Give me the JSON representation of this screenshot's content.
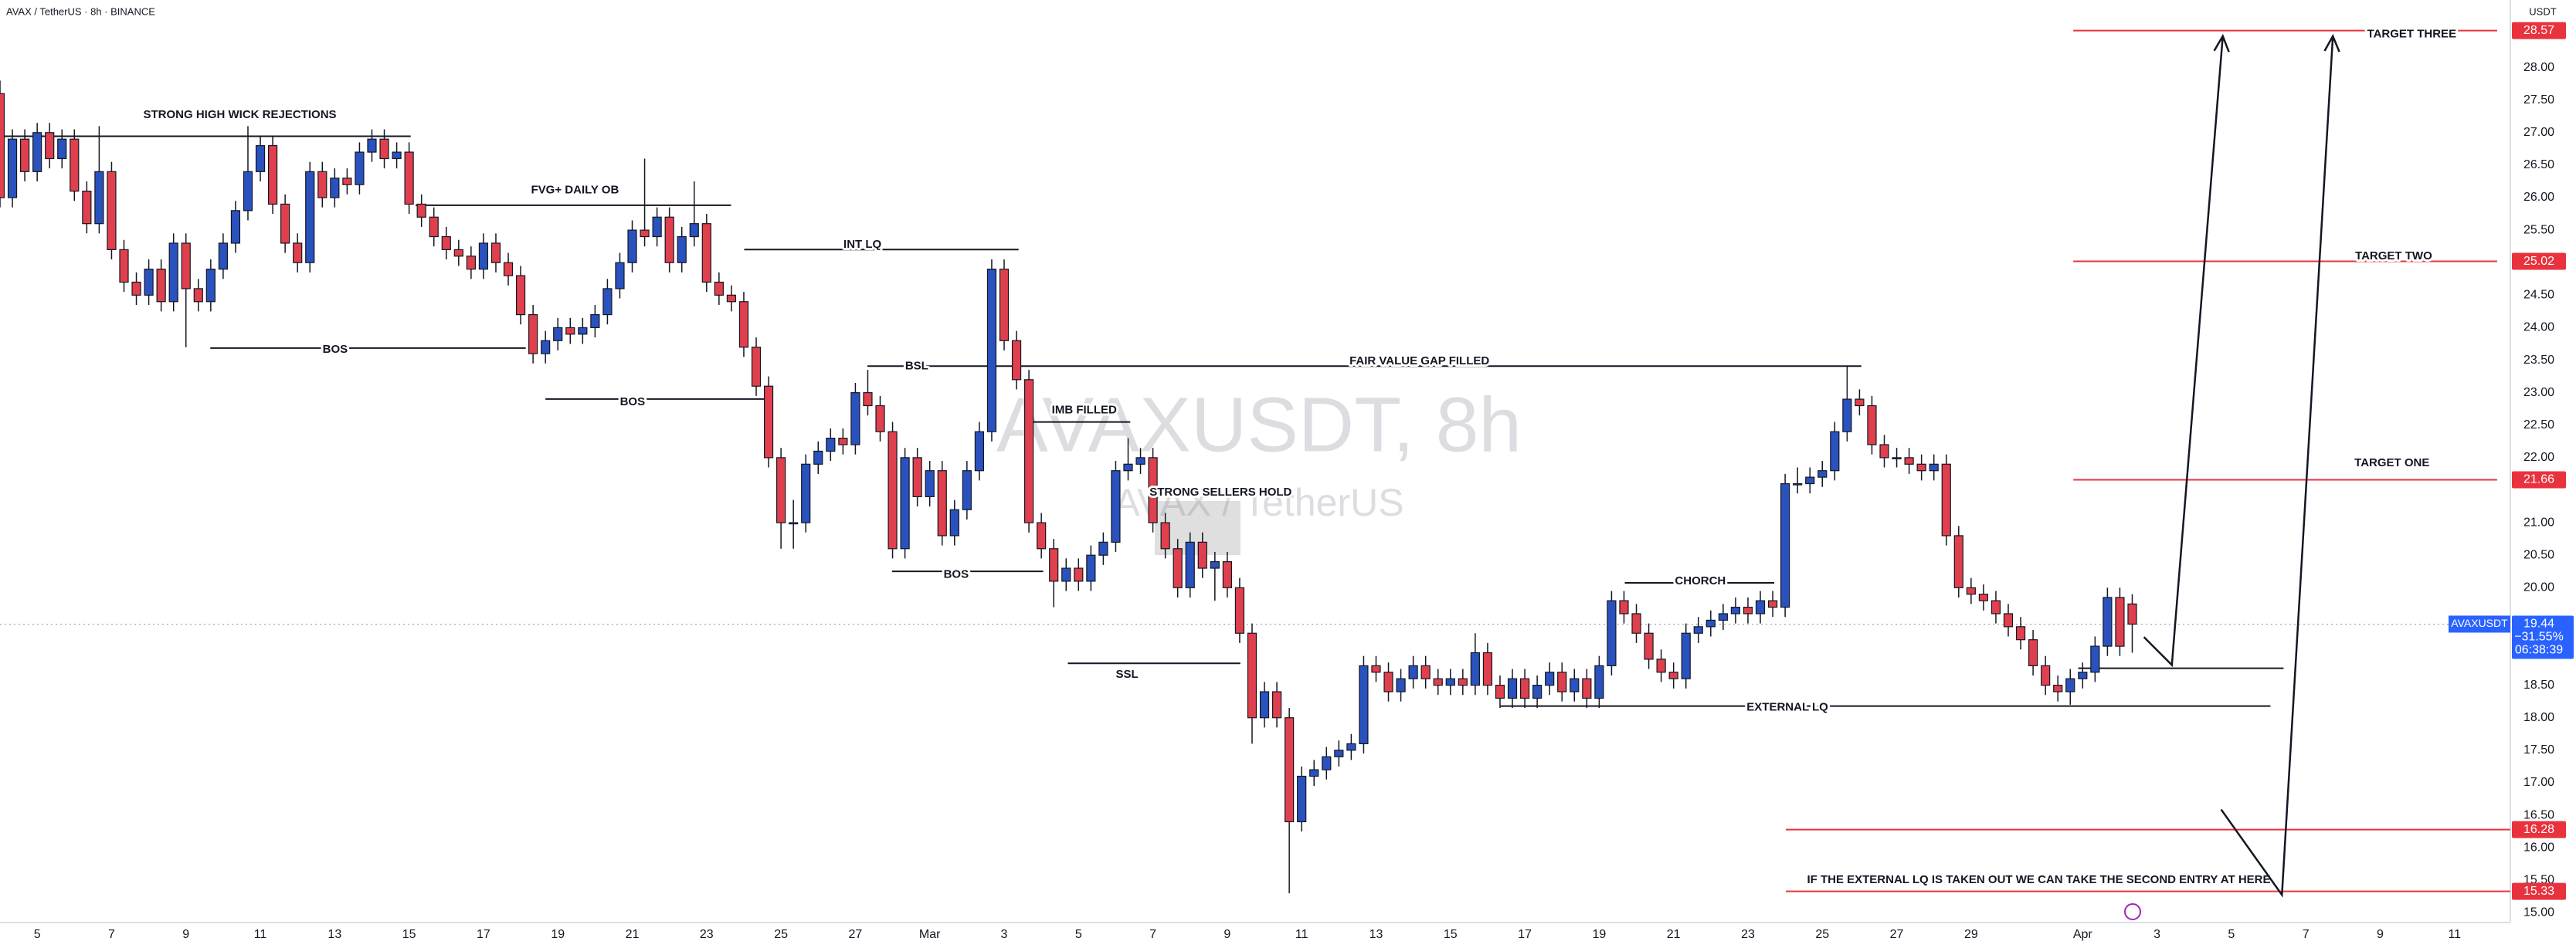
{
  "header": "AVAX / TetherUS · 8h · BINANCE",
  "chart_data": {
    "type": "candlestick",
    "watermark": [
      "AVAXUSDT, 8h",
      "AVAX / TetherUS"
    ],
    "y_unit": "USDT",
    "up_color": "#2a52be",
    "down_color": "#e0404d",
    "level_color": "#e8333f",
    "tag_color": "#2962ff",
    "ohlc": [
      [
        27.6,
        27.8,
        25.85,
        26.0
      ],
      [
        26.0,
        27.05,
        25.85,
        26.9
      ],
      [
        26.9,
        27.05,
        26.25,
        26.4
      ],
      [
        26.4,
        27.15,
        26.25,
        27.0
      ],
      [
        27.0,
        27.15,
        26.45,
        26.6
      ],
      [
        26.6,
        27.05,
        26.45,
        26.9
      ],
      [
        26.9,
        27.05,
        25.95,
        26.1
      ],
      [
        26.1,
        26.25,
        25.45,
        25.6
      ],
      [
        25.6,
        27.1,
        25.45,
        26.4
      ],
      [
        26.4,
        26.55,
        25.05,
        25.2
      ],
      [
        25.2,
        25.35,
        24.55,
        24.7
      ],
      [
        24.7,
        24.85,
        24.35,
        24.5
      ],
      [
        24.5,
        25.05,
        24.35,
        24.9
      ],
      [
        24.9,
        25.05,
        24.25,
        24.4
      ],
      [
        24.4,
        25.45,
        24.25,
        25.3
      ],
      [
        25.3,
        25.45,
        23.7,
        24.6
      ],
      [
        24.6,
        24.75,
        24.25,
        24.4
      ],
      [
        24.4,
        25.05,
        24.25,
        24.9
      ],
      [
        24.9,
        25.45,
        24.75,
        25.3
      ],
      [
        25.3,
        25.95,
        25.15,
        25.8
      ],
      [
        25.8,
        27.1,
        25.65,
        26.4
      ],
      [
        26.4,
        26.95,
        26.25,
        26.8
      ],
      [
        26.8,
        26.95,
        25.75,
        25.9
      ],
      [
        25.9,
        26.05,
        25.15,
        25.3
      ],
      [
        25.3,
        25.45,
        24.85,
        25.0
      ],
      [
        25.0,
        26.55,
        24.85,
        26.4
      ],
      [
        26.4,
        26.55,
        25.85,
        26.0
      ],
      [
        26.0,
        26.45,
        25.85,
        26.3
      ],
      [
        26.3,
        26.45,
        26.05,
        26.2
      ],
      [
        26.2,
        26.85,
        26.05,
        26.7
      ],
      [
        26.7,
        27.05,
        26.55,
        26.9
      ],
      [
        26.9,
        27.05,
        26.45,
        26.6
      ],
      [
        26.6,
        26.85,
        26.45,
        26.7
      ],
      [
        26.7,
        26.85,
        25.75,
        25.9
      ],
      [
        25.9,
        26.05,
        25.55,
        25.7
      ],
      [
        25.7,
        25.85,
        25.25,
        25.4
      ],
      [
        25.4,
        25.55,
        25.05,
        25.2
      ],
      [
        25.2,
        25.35,
        24.95,
        25.1
      ],
      [
        25.1,
        25.25,
        24.75,
        24.9
      ],
      [
        24.9,
        25.45,
        24.75,
        25.3
      ],
      [
        25.3,
        25.45,
        24.85,
        25.0
      ],
      [
        25.0,
        25.15,
        24.65,
        24.8
      ],
      [
        24.8,
        24.95,
        24.05,
        24.2
      ],
      [
        24.2,
        24.35,
        23.45,
        23.6
      ],
      [
        23.6,
        23.95,
        23.45,
        23.8
      ],
      [
        23.8,
        24.15,
        23.65,
        24.0
      ],
      [
        24.0,
        24.15,
        23.75,
        23.9
      ],
      [
        23.9,
        24.15,
        23.75,
        24.0
      ],
      [
        24.0,
        24.35,
        23.85,
        24.2
      ],
      [
        24.2,
        24.75,
        24.05,
        24.6
      ],
      [
        24.6,
        25.15,
        24.45,
        25.0
      ],
      [
        25.0,
        25.65,
        24.85,
        25.5
      ],
      [
        25.5,
        26.6,
        25.25,
        25.4
      ],
      [
        25.4,
        25.85,
        25.25,
        25.7
      ],
      [
        25.7,
        25.85,
        24.85,
        25.0
      ],
      [
        25.0,
        25.55,
        24.85,
        25.4
      ],
      [
        25.4,
        26.25,
        25.25,
        25.6
      ],
      [
        25.6,
        25.75,
        24.55,
        24.7
      ],
      [
        24.7,
        24.85,
        24.35,
        24.5
      ],
      [
        24.5,
        24.65,
        24.25,
        24.4
      ],
      [
        24.4,
        24.55,
        23.55,
        23.7
      ],
      [
        23.7,
        23.85,
        22.95,
        23.1
      ],
      [
        23.1,
        23.25,
        21.85,
        22.0
      ],
      [
        22.0,
        22.15,
        20.6,
        21.0
      ],
      [
        21.0,
        21.35,
        20.6,
        21.0
      ],
      [
        21.0,
        22.05,
        20.85,
        21.9
      ],
      [
        21.9,
        22.25,
        21.75,
        22.1
      ],
      [
        22.1,
        22.45,
        21.95,
        22.3
      ],
      [
        22.3,
        22.45,
        22.05,
        22.2
      ],
      [
        22.2,
        23.15,
        22.05,
        23.0
      ],
      [
        23.0,
        23.35,
        22.65,
        22.8
      ],
      [
        22.8,
        22.95,
        22.25,
        22.4
      ],
      [
        22.4,
        22.55,
        20.45,
        20.6
      ],
      [
        20.6,
        22.15,
        20.45,
        22.0
      ],
      [
        22.0,
        22.15,
        21.25,
        21.4
      ],
      [
        21.4,
        21.95,
        21.25,
        21.8
      ],
      [
        21.8,
        21.95,
        20.65,
        20.8
      ],
      [
        20.8,
        21.35,
        20.65,
        21.2
      ],
      [
        21.2,
        21.95,
        21.05,
        21.8
      ],
      [
        21.8,
        22.55,
        21.65,
        22.4
      ],
      [
        22.4,
        25.05,
        22.25,
        24.9
      ],
      [
        24.9,
        25.05,
        23.65,
        23.8
      ],
      [
        23.8,
        23.95,
        23.05,
        23.2
      ],
      [
        23.2,
        23.35,
        20.85,
        21.0
      ],
      [
        21.0,
        21.15,
        20.45,
        20.6
      ],
      [
        20.6,
        20.75,
        19.7,
        20.1
      ],
      [
        20.1,
        20.45,
        19.95,
        20.3
      ],
      [
        20.3,
        20.45,
        19.95,
        20.1
      ],
      [
        20.1,
        20.65,
        19.95,
        20.5
      ],
      [
        20.5,
        20.85,
        20.35,
        20.7
      ],
      [
        20.7,
        21.95,
        20.55,
        21.8
      ],
      [
        21.8,
        22.3,
        21.65,
        21.9
      ],
      [
        21.9,
        22.15,
        21.75,
        22.0
      ],
      [
        22.0,
        22.15,
        20.85,
        21.0
      ],
      [
        21.0,
        21.15,
        20.45,
        20.6
      ],
      [
        20.6,
        20.75,
        19.85,
        20.0
      ],
      [
        20.0,
        20.85,
        19.85,
        20.7
      ],
      [
        20.7,
        20.85,
        20.15,
        20.3
      ],
      [
        20.3,
        20.55,
        19.8,
        20.4
      ],
      [
        20.4,
        20.55,
        19.85,
        20.0
      ],
      [
        20.0,
        20.15,
        19.15,
        19.3
      ],
      [
        19.3,
        19.45,
        17.6,
        18.0
      ],
      [
        18.0,
        18.55,
        17.85,
        18.4
      ],
      [
        18.4,
        18.55,
        17.85,
        18.0
      ],
      [
        18.0,
        18.15,
        15.3,
        16.4
      ],
      [
        16.4,
        17.25,
        16.25,
        17.1
      ],
      [
        17.1,
        17.35,
        16.95,
        17.2
      ],
      [
        17.2,
        17.55,
        17.05,
        17.4
      ],
      [
        17.4,
        17.65,
        17.25,
        17.5
      ],
      [
        17.5,
        17.75,
        17.35,
        17.6
      ],
      [
        17.6,
        18.95,
        17.45,
        18.8
      ],
      [
        18.8,
        18.95,
        18.55,
        18.7
      ],
      [
        18.7,
        18.85,
        18.25,
        18.4
      ],
      [
        18.4,
        18.75,
        18.25,
        18.6
      ],
      [
        18.6,
        18.95,
        18.45,
        18.8
      ],
      [
        18.8,
        18.95,
        18.45,
        18.6
      ],
      [
        18.6,
        18.75,
        18.35,
        18.5
      ],
      [
        18.5,
        18.75,
        18.35,
        18.6
      ],
      [
        18.6,
        18.75,
        18.35,
        18.5
      ],
      [
        18.5,
        19.3,
        18.35,
        19.0
      ],
      [
        19.0,
        19.15,
        18.35,
        18.5
      ],
      [
        18.5,
        18.65,
        18.15,
        18.3
      ],
      [
        18.3,
        18.75,
        18.15,
        18.6
      ],
      [
        18.6,
        18.75,
        18.15,
        18.3
      ],
      [
        18.3,
        18.65,
        18.15,
        18.5
      ],
      [
        18.5,
        18.85,
        18.35,
        18.7
      ],
      [
        18.7,
        18.85,
        18.25,
        18.4
      ],
      [
        18.4,
        18.75,
        18.25,
        18.6
      ],
      [
        18.6,
        18.75,
        18.15,
        18.3
      ],
      [
        18.3,
        18.95,
        18.15,
        18.8
      ],
      [
        18.8,
        19.95,
        18.65,
        19.8
      ],
      [
        19.8,
        19.95,
        19.45,
        19.6
      ],
      [
        19.6,
        19.75,
        19.15,
        19.3
      ],
      [
        19.3,
        19.45,
        18.75,
        18.9
      ],
      [
        18.9,
        19.05,
        18.55,
        18.7
      ],
      [
        18.7,
        18.85,
        18.45,
        18.6
      ],
      [
        18.6,
        19.45,
        18.45,
        19.3
      ],
      [
        19.3,
        19.55,
        19.15,
        19.4
      ],
      [
        19.4,
        19.65,
        19.25,
        19.5
      ],
      [
        19.5,
        19.75,
        19.35,
        19.6
      ],
      [
        19.6,
        19.85,
        19.45,
        19.7
      ],
      [
        19.7,
        19.85,
        19.45,
        19.6
      ],
      [
        19.6,
        19.95,
        19.45,
        19.8
      ],
      [
        19.8,
        19.95,
        19.55,
        19.7
      ],
      [
        19.7,
        21.75,
        19.55,
        21.6
      ],
      [
        21.6,
        21.85,
        21.45,
        21.6
      ],
      [
        21.6,
        21.85,
        21.45,
        21.7
      ],
      [
        21.7,
        21.95,
        21.55,
        21.8
      ],
      [
        21.8,
        22.55,
        21.65,
        22.4
      ],
      [
        22.4,
        23.4,
        22.25,
        22.9
      ],
      [
        22.9,
        23.05,
        22.65,
        22.8
      ],
      [
        22.8,
        22.95,
        22.05,
        22.2
      ],
      [
        22.2,
        22.35,
        21.85,
        22.0
      ],
      [
        22.0,
        22.15,
        21.85,
        22.0
      ],
      [
        22.0,
        22.15,
        21.75,
        21.9
      ],
      [
        21.9,
        22.05,
        21.65,
        21.8
      ],
      [
        21.8,
        22.05,
        21.65,
        21.9
      ],
      [
        21.9,
        22.05,
        20.65,
        20.8
      ],
      [
        20.8,
        20.95,
        19.85,
        20.0
      ],
      [
        20.0,
        20.15,
        19.75,
        19.9
      ],
      [
        19.9,
        20.05,
        19.65,
        19.8
      ],
      [
        19.8,
        19.95,
        19.45,
        19.6
      ],
      [
        19.6,
        19.75,
        19.25,
        19.4
      ],
      [
        19.4,
        19.55,
        19.05,
        19.2
      ],
      [
        19.2,
        19.35,
        18.65,
        18.8
      ],
      [
        18.8,
        18.95,
        18.35,
        18.5
      ],
      [
        18.5,
        18.65,
        18.25,
        18.4
      ],
      [
        18.4,
        18.75,
        18.2,
        18.6
      ],
      [
        18.6,
        18.85,
        18.45,
        18.7
      ],
      [
        18.7,
        19.25,
        18.55,
        19.1
      ],
      [
        19.1,
        20.0,
        18.95,
        19.85
      ],
      [
        19.85,
        20.0,
        18.95,
        19.1
      ],
      [
        19.75,
        19.9,
        19.0,
        19.44
      ]
    ],
    "xlim": [
      0,
      202.5
    ],
    "xticks": [
      {
        "value": 3,
        "label": "5"
      },
      {
        "value": 9,
        "label": "7"
      },
      {
        "value": 15,
        "label": "9"
      },
      {
        "value": 21,
        "label": "11"
      },
      {
        "value": 27,
        "label": "13"
      },
      {
        "value": 33,
        "label": "15"
      },
      {
        "value": 39,
        "label": "17"
      },
      {
        "value": 45,
        "label": "19"
      },
      {
        "value": 51,
        "label": "21"
      },
      {
        "value": 57,
        "label": "23"
      },
      {
        "value": 63,
        "label": "25"
      },
      {
        "value": 69,
        "label": "27"
      },
      {
        "value": 75,
        "label": "Mar"
      },
      {
        "value": 81,
        "label": "3"
      },
      {
        "value": 87,
        "label": "5"
      },
      {
        "value": 93,
        "label": "7"
      },
      {
        "value": 99,
        "label": "9"
      },
      {
        "value": 105,
        "label": "11"
      },
      {
        "value": 111,
        "label": "13"
      },
      {
        "value": 117,
        "label": "15"
      },
      {
        "value": 123,
        "label": "17"
      },
      {
        "value": 129,
        "label": "19"
      },
      {
        "value": 135,
        "label": "21"
      },
      {
        "value": 141,
        "label": "23"
      },
      {
        "value": 147,
        "label": "25"
      },
      {
        "value": 153,
        "label": "27"
      },
      {
        "value": 159,
        "label": "29"
      },
      {
        "value": 168,
        "label": "Apr"
      },
      {
        "value": 174,
        "label": "3"
      },
      {
        "value": 180,
        "label": "5"
      },
      {
        "value": 186,
        "label": "7"
      },
      {
        "value": 192,
        "label": "9"
      },
      {
        "value": 198,
        "label": "11"
      }
    ],
    "ylim": [
      14.85,
      29.04
    ],
    "yticks": [
      {
        "value": 15,
        "label": "15.00"
      },
      {
        "value": 15.5,
        "label": "15.50"
      },
      {
        "value": 16,
        "label": "16.00"
      },
      {
        "value": 16.5,
        "label": "16.50"
      },
      {
        "value": 17,
        "label": "17.00"
      },
      {
        "value": 17.5,
        "label": "17.50"
      },
      {
        "value": 18,
        "label": "18.00"
      },
      {
        "value": 18.5,
        "label": "18.50"
      },
      {
        "value": 19,
        "label": "19.00"
      },
      {
        "value": 20,
        "label": "20.00"
      },
      {
        "value": 20.5,
        "label": "20.50"
      },
      {
        "value": 21,
        "label": "21.00"
      },
      {
        "value": 22,
        "label": "22.00"
      },
      {
        "value": 22.5,
        "label": "22.50"
      },
      {
        "value": 23,
        "label": "23.00"
      },
      {
        "value": 23.5,
        "label": "23.50"
      },
      {
        "value": 24,
        "label": "24.00"
      },
      {
        "value": 24.5,
        "label": "24.50"
      },
      {
        "value": 25.5,
        "label": "25.50"
      },
      {
        "value": 26,
        "label": "26.00"
      },
      {
        "value": 26.5,
        "label": "26.50"
      },
      {
        "value": 27,
        "label": "27.00"
      },
      {
        "value": 27.5,
        "label": "27.50"
      },
      {
        "value": 28,
        "label": "28.00"
      }
    ],
    "price_tag": {
      "symbol": "AVAXUSDT",
      "change": "−31.55%",
      "countdown": "06:38:39"
    },
    "levels": [
      {
        "name": "TARGET THREE",
        "price": 28.57
      },
      {
        "name": "TARGET TWO",
        "price": 25.02
      },
      {
        "name": "TARGET ONE",
        "price": 21.66
      },
      {
        "price": 16.28
      },
      {
        "name": "IF THE EXTERNAL LQ IS TAKEN OUT WE CAN TAKE THE SECOND ENTRY AT HERE",
        "price": 15.33
      }
    ],
    "annotations": [
      "STRONG HIGH WICK REJECTIONS",
      "FVG+ DAILY OB",
      "INT LQ",
      "BOS",
      "BOS",
      "BSL",
      "FAIR VALUE GAP FILLED",
      "IMB FILLED",
      "STRONG SELLERS HOLD",
      "BOS",
      "SSL",
      "CHORCH",
      "EXTERNAL LQ"
    ]
  }
}
